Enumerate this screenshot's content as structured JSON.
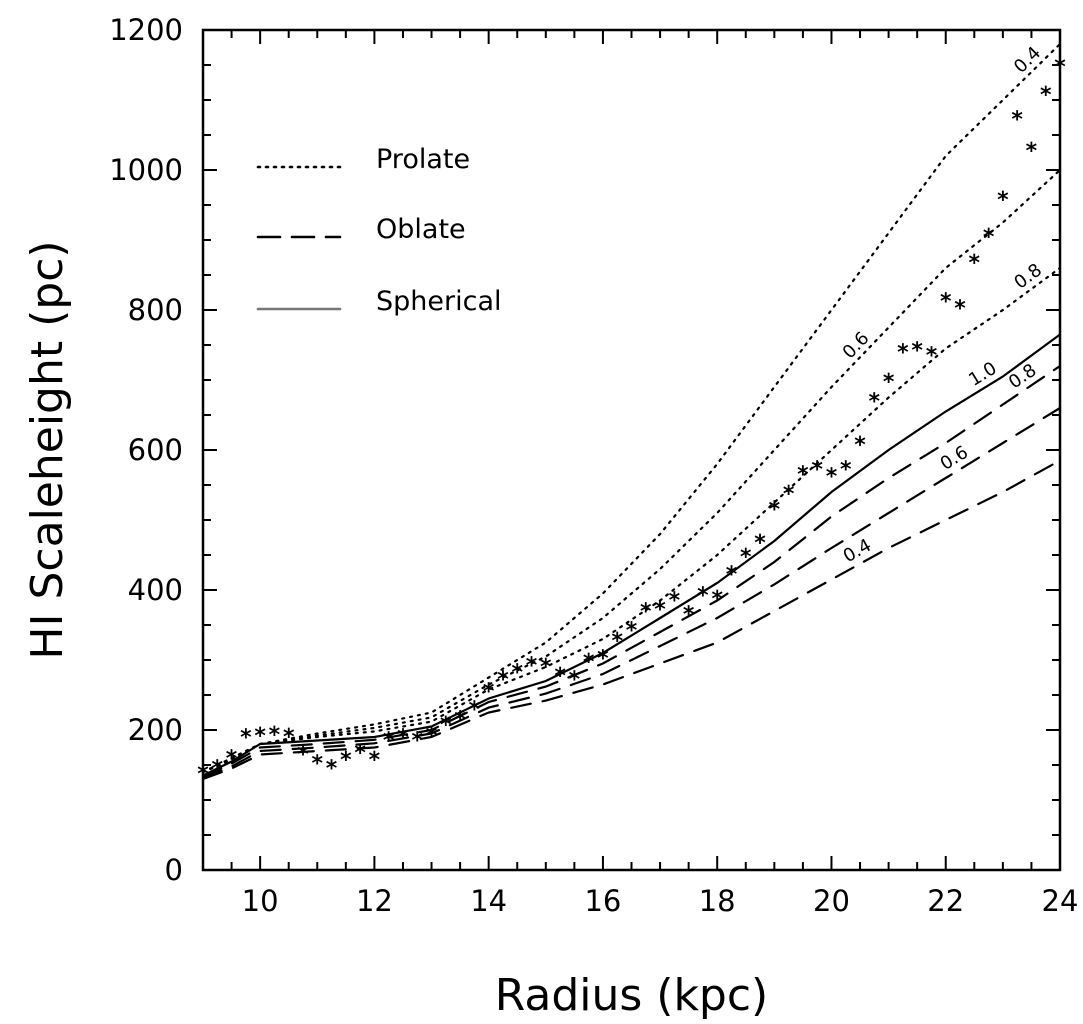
{
  "chart_data": {
    "type": "line",
    "xlabel": "Radius (kpc)",
    "ylabel": "HI Scaleheight (pc)",
    "xlim": [
      9,
      24
    ],
    "ylim": [
      0,
      1200
    ],
    "xticks": [
      10,
      12,
      14,
      16,
      18,
      20,
      22,
      24
    ],
    "yticks": [
      0,
      200,
      400,
      600,
      800,
      1000,
      1200
    ],
    "grid": false,
    "legend": {
      "placement": "upper-left",
      "entries": [
        {
          "label": "Prolate",
          "style": "dotted"
        },
        {
          "label": "Oblate",
          "style": "dashed"
        },
        {
          "label": "Spherical",
          "style": "solid"
        }
      ]
    },
    "series": [
      {
        "family": "Prolate",
        "label": "0.4",
        "style": "dotted",
        "x": [
          9,
          9.5,
          10,
          11,
          12,
          13,
          14,
          15,
          16,
          17,
          18,
          19,
          20,
          21,
          22,
          23,
          24
        ],
        "y": [
          140,
          160,
          180,
          195,
          208,
          225,
          275,
          325,
          395,
          480,
          580,
          690,
          800,
          910,
          1020,
          1100,
          1180
        ]
      },
      {
        "family": "Prolate",
        "label": "0.6",
        "style": "dotted",
        "x": [
          9,
          9.5,
          10,
          11,
          12,
          13,
          14,
          15,
          16,
          17,
          18,
          19,
          20,
          21,
          22,
          23,
          24
        ],
        "y": [
          140,
          158,
          180,
          192,
          203,
          218,
          265,
          305,
          360,
          430,
          510,
          600,
          690,
          775,
          860,
          925,
          1000
        ]
      },
      {
        "family": "Prolate",
        "label": "0.8",
        "style": "dotted",
        "x": [
          9,
          9.5,
          10,
          11,
          12,
          13,
          14,
          15,
          16,
          17,
          18,
          19,
          20,
          21,
          22,
          23,
          24
        ],
        "y": [
          140,
          157,
          180,
          190,
          198,
          212,
          258,
          290,
          330,
          385,
          450,
          525,
          600,
          675,
          745,
          800,
          860
        ]
      },
      {
        "family": "Spherical",
        "label": "1.0",
        "style": "solid",
        "x": [
          9,
          9.5,
          10,
          11,
          12,
          13,
          14,
          15,
          16,
          17,
          18,
          19,
          20,
          21,
          22,
          23,
          24
        ],
        "y": [
          135,
          155,
          180,
          185,
          190,
          205,
          245,
          270,
          310,
          360,
          410,
          470,
          540,
          600,
          655,
          705,
          765
        ]
      },
      {
        "family": "Oblate",
        "label": "0.8",
        "style": "dashed",
        "x": [
          9,
          9.5,
          10,
          11,
          12,
          13,
          14,
          15,
          16,
          17,
          18,
          19,
          20,
          21,
          22,
          23,
          24
        ],
        "y": [
          133,
          152,
          175,
          180,
          186,
          200,
          240,
          262,
          295,
          340,
          385,
          440,
          505,
          560,
          610,
          665,
          720
        ]
      },
      {
        "family": "Oblate",
        "label": "0.6",
        "style": "dashed",
        "x": [
          9,
          9.5,
          10,
          11,
          12,
          13,
          14,
          15,
          16,
          17,
          18,
          19,
          20,
          21,
          22,
          23,
          24
        ],
        "y": [
          131,
          148,
          170,
          175,
          181,
          195,
          232,
          252,
          280,
          320,
          360,
          408,
          460,
          510,
          560,
          610,
          660
        ]
      },
      {
        "family": "Oblate",
        "label": "0.4",
        "style": "dashed",
        "x": [
          9,
          9.5,
          10,
          11,
          12,
          13,
          14,
          15,
          16,
          17,
          18,
          19,
          20,
          21,
          22,
          23,
          24
        ],
        "y": [
          130,
          145,
          165,
          170,
          175,
          190,
          225,
          242,
          265,
          295,
          325,
          370,
          415,
          460,
          500,
          540,
          585
        ]
      }
    ],
    "observations": {
      "marker": "asterisk",
      "x": [
        9,
        9.25,
        9.5,
        9.75,
        10,
        10.25,
        10.5,
        10.75,
        11,
        11.25,
        11.5,
        11.75,
        12,
        12.25,
        12.5,
        12.75,
        13,
        13.25,
        13.5,
        13.75,
        14,
        14.25,
        14.5,
        14.75,
        15,
        15.25,
        15.5,
        15.75,
        16,
        16.25,
        16.5,
        16.75,
        17,
        17.25,
        17.5,
        17.75,
        18,
        18.25,
        18.5,
        18.75,
        19,
        19.25,
        19.5,
        19.75,
        20,
        20.25,
        20.5,
        20.75,
        21,
        21.25,
        21.5,
        21.75,
        22,
        22.25,
        22.5,
        22.75,
        23,
        23.25,
        23.5,
        23.75,
        24
      ],
      "y": [
        140,
        148,
        162,
        192,
        194,
        196,
        193,
        168,
        155,
        148,
        160,
        170,
        160,
        188,
        192,
        188,
        195,
        210,
        218,
        232,
        258,
        275,
        285,
        295,
        293,
        280,
        275,
        300,
        305,
        330,
        345,
        372,
        375,
        388,
        368,
        395,
        390,
        425,
        450,
        470,
        518,
        540,
        568,
        575,
        565,
        575,
        610,
        672,
        700,
        742,
        745,
        738,
        815,
        805,
        870,
        907,
        960,
        1075,
        1030,
        1110,
        1150
      ]
    }
  }
}
